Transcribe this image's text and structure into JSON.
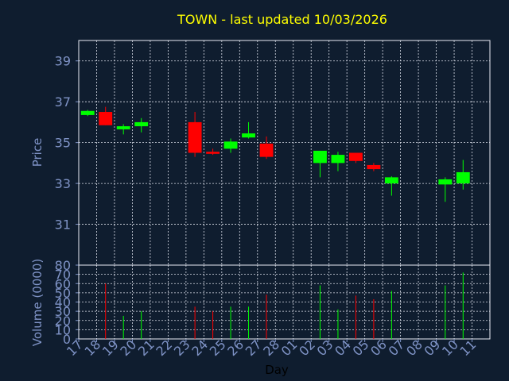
{
  "chart_data": [
    {
      "type": "candlestick",
      "title": "TOWN - last updated 10/03/2026",
      "ylabel": "Price",
      "ylim": [
        29,
        40
      ],
      "yticks": [
        31,
        33,
        35,
        37,
        39
      ],
      "grid": true,
      "up_color": "#00ff00",
      "down_color": "#ff0000",
      "categories": [
        "17",
        "18",
        "19",
        "20",
        "21",
        "22",
        "23",
        "24",
        "25",
        "26",
        "27",
        "28",
        "01",
        "02",
        "03",
        "04",
        "05",
        "06",
        "07",
        "08",
        "09",
        "10",
        "11"
      ],
      "candles": [
        {
          "day": "17",
          "open": 36.35,
          "close": 36.55,
          "high": 36.6,
          "low": 36.3
        },
        {
          "day": "18",
          "open": 36.5,
          "close": 35.85,
          "high": 36.75,
          "low": 35.85
        },
        {
          "day": "19",
          "open": 35.65,
          "close": 35.8,
          "high": 35.9,
          "low": 35.4
        },
        {
          "day": "20",
          "open": 35.8,
          "close": 36.0,
          "high": 36.2,
          "low": 35.5
        },
        {
          "day": "23",
          "open": 36.0,
          "close": 34.5,
          "high": 36.5,
          "low": 34.3
        },
        {
          "day": "24",
          "open": 34.55,
          "close": 34.45,
          "high": 34.7,
          "low": 34.4
        },
        {
          "day": "25",
          "open": 34.7,
          "close": 35.05,
          "high": 35.2,
          "low": 34.5
        },
        {
          "day": "26",
          "open": 35.25,
          "close": 35.45,
          "high": 36.0,
          "low": 35.2
        },
        {
          "day": "27",
          "open": 34.95,
          "close": 34.3,
          "high": 35.3,
          "low": 34.2
        },
        {
          "day": "02",
          "open": 34.0,
          "close": 34.6,
          "high": 34.6,
          "low": 33.3
        },
        {
          "day": "03",
          "open": 34.0,
          "close": 34.4,
          "high": 34.55,
          "low": 33.6
        },
        {
          "day": "04",
          "open": 34.5,
          "close": 34.1,
          "high": 34.5,
          "low": 34.0
        },
        {
          "day": "05",
          "open": 33.9,
          "close": 33.7,
          "high": 34.0,
          "low": 33.6
        },
        {
          "day": "06",
          "open": 33.0,
          "close": 33.3,
          "high": 33.35,
          "low": 32.4
        },
        {
          "day": "09",
          "open": 32.95,
          "close": 33.2,
          "high": 33.3,
          "low": 32.1
        },
        {
          "day": "10",
          "open": 33.0,
          "close": 33.55,
          "high": 34.15,
          "low": 32.7
        }
      ]
    },
    {
      "type": "bar",
      "xlabel": "Day",
      "ylabel": "Volume (0000)",
      "ylim": [
        0,
        80
      ],
      "yticks": [
        0,
        10,
        20,
        30,
        40,
        50,
        60,
        70,
        80
      ],
      "grid": true,
      "categories": [
        "17",
        "18",
        "19",
        "20",
        "21",
        "22",
        "23",
        "24",
        "25",
        "26",
        "27",
        "28",
        "01",
        "02",
        "03",
        "04",
        "05",
        "06",
        "07",
        "08",
        "09",
        "10",
        "11"
      ],
      "bars": [
        {
          "day": "18",
          "value": 60,
          "direction": "down"
        },
        {
          "day": "19",
          "value": 25,
          "direction": "up"
        },
        {
          "day": "20",
          "value": 30,
          "direction": "up"
        },
        {
          "day": "23",
          "value": 35,
          "direction": "down"
        },
        {
          "day": "24",
          "value": 30,
          "direction": "down"
        },
        {
          "day": "25",
          "value": 35,
          "direction": "up"
        },
        {
          "day": "26",
          "value": 35,
          "direction": "up"
        },
        {
          "day": "27",
          "value": 48,
          "direction": "down"
        },
        {
          "day": "02",
          "value": 58,
          "direction": "up"
        },
        {
          "day": "03",
          "value": 32,
          "direction": "up"
        },
        {
          "day": "04",
          "value": 47,
          "direction": "down"
        },
        {
          "day": "05",
          "value": 43,
          "direction": "down"
        },
        {
          "day": "06",
          "value": 52,
          "direction": "up"
        },
        {
          "day": "09",
          "value": 58,
          "direction": "up"
        },
        {
          "day": "10",
          "value": 72,
          "direction": "up"
        }
      ]
    }
  ]
}
